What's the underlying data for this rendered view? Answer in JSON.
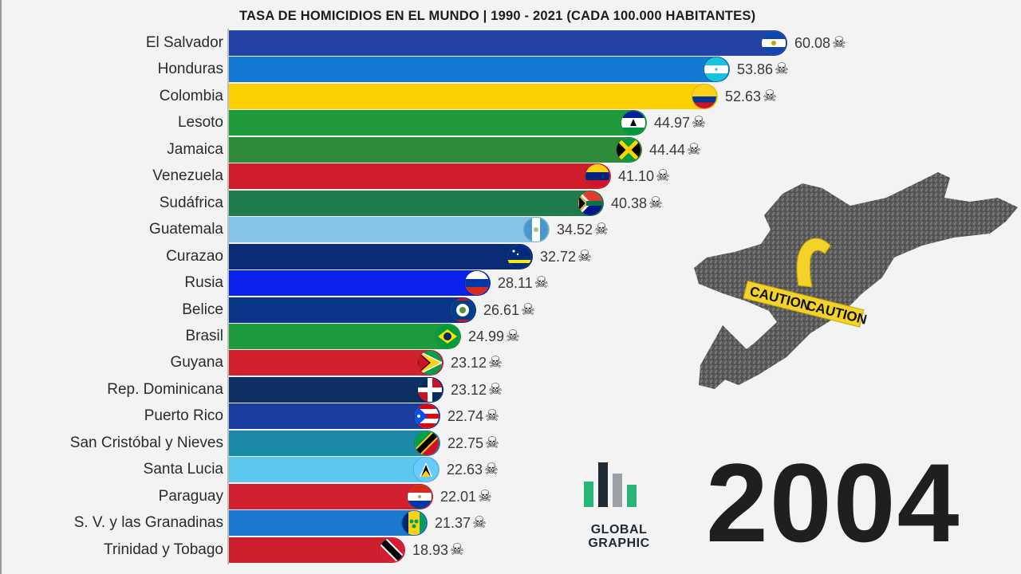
{
  "title": "TASA DE HOMICIDIOS EN EL MUNDO | 1990 - 2021 (CADA 100.000 HABITANTES)",
  "year": "2004",
  "logo": {
    "line1": "GLOBAL",
    "line2": "GRAPHIC"
  },
  "scene": {
    "tape1": "CAUTION",
    "tape2": "CAUTION"
  },
  "chart_data": {
    "type": "bar",
    "orientation": "horizontal",
    "title": "TASA DE HOMICIDIOS EN EL MUNDO | 1990 - 2021 (CADA 100.000 HABITANTES)",
    "xlim": [
      0,
      60.08
    ],
    "categories": [
      "El Salvador",
      "Honduras",
      "Colombia",
      "Lesoto",
      "Jamaica",
      "Venezuela",
      "Sudáfrica",
      "Guatemala",
      "Curazao",
      "Rusia",
      "Belice",
      "Brasil",
      "Guyana",
      "Rep. Dominicana",
      "Puerto Rico",
      "San Cristóbal y Nieves",
      "Santa Lucia",
      "Paraguay",
      "S. V. y las Granadinas",
      "Trinidad y Tobago"
    ],
    "values": [
      60.08,
      53.86,
      52.63,
      44.97,
      44.44,
      41.1,
      40.38,
      34.52,
      32.72,
      28.11,
      26.61,
      24.99,
      23.12,
      23.12,
      22.74,
      22.75,
      22.63,
      22.01,
      21.37,
      18.93
    ],
    "value_labels": [
      "60.08",
      "53.86",
      "52.63",
      "44.97",
      "44.44",
      "41.10",
      "40.38",
      "34.52",
      "32.72",
      "28.11",
      "26.61",
      "24.99",
      "23.12",
      "23.12",
      "22.74",
      "22.75",
      "22.63",
      "22.01",
      "21.37",
      "18.93"
    ],
    "colors": [
      "#2342a5",
      "#1479d2",
      "#fccf00",
      "#1f9b3c",
      "#2e8b3a",
      "#d01c2b",
      "#1f7a4c",
      "#87c3e6",
      "#0a2b75",
      "#0b21ee",
      "#0b3588",
      "#1e9b3c",
      "#d3202d",
      "#0b2f63",
      "#1b3fa0",
      "#1b8aa6",
      "#5cc7ef",
      "#d32030",
      "#1a78cf",
      "#cd1f2c"
    ],
    "flags": [
      "el-salvador-flag-icon",
      "honduras-flag-icon",
      "colombia-flag-icon",
      "lesotho-flag-icon",
      "jamaica-flag-icon",
      "venezuela-flag-icon",
      "south-africa-flag-icon",
      "guatemala-flag-icon",
      "curacao-flag-icon",
      "russia-flag-icon",
      "belize-flag-icon",
      "brazil-flag-icon",
      "guyana-flag-icon",
      "dominican-republic-flag-icon",
      "puerto-rico-flag-icon",
      "saint-kitts-nevis-flag-icon",
      "saint-lucia-flag-icon",
      "paraguay-flag-icon",
      "saint-vincent-flag-icon",
      "trinidad-tobago-flag-icon"
    ],
    "grid": false,
    "legend": "none"
  }
}
